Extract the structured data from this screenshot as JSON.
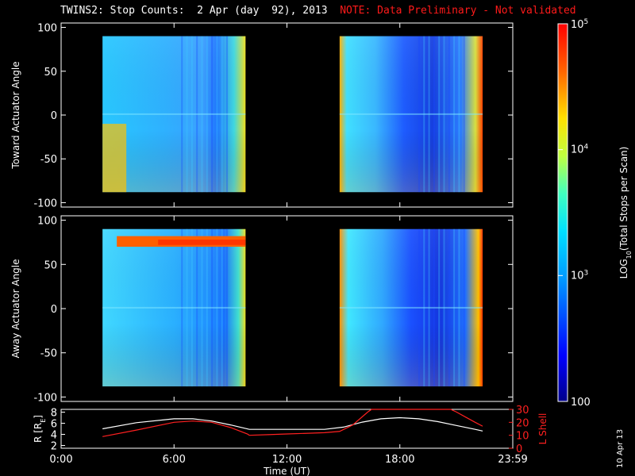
{
  "header": {
    "title": "TWINS2: Stop Counts:  2 Apr (day  92), 2013",
    "note": "NOTE: Data Preliminary - Not validated"
  },
  "side_label": "10 Apr 13",
  "colors": {
    "background": "#000000",
    "axes": "#ffffff",
    "note": "#ff1a1a",
    "r_line": "#ffffff",
    "lshell_line": "#ff2020"
  },
  "chart_data": [
    {
      "type": "heatmap",
      "panel": "toward",
      "ylabel": "Toward Actuator Angle",
      "ylim": [
        -105,
        105
      ],
      "yticks": [
        100,
        50,
        0,
        -50,
        -100
      ],
      "x_hours": [
        0,
        24
      ],
      "data_blocks_hours": [
        [
          2.2,
          9.8
        ],
        [
          14.8,
          22.4
        ]
      ],
      "angle_range": [
        -88,
        90
      ]
    },
    {
      "type": "heatmap",
      "panel": "away",
      "ylabel": "Away Actuator Angle",
      "ylim": [
        -105,
        105
      ],
      "yticks": [
        100,
        50,
        0,
        -50,
        -100
      ],
      "x_hours": [
        0,
        24
      ],
      "data_blocks_hours": [
        [
          2.2,
          9.8
        ],
        [
          14.8,
          22.4
        ]
      ],
      "angle_range": [
        -88,
        90
      ]
    },
    {
      "type": "line",
      "panel": "orbit",
      "xlabel": "Time (UT)",
      "xticks": [
        "0:00",
        "6:00",
        "12:00",
        "18:00",
        "23:59"
      ],
      "xtick_hours": [
        0,
        6,
        12,
        18,
        24
      ],
      "ylabel_left": "R [R",
      "ylabel_left_sub": "E",
      "ylabel_left_close": "]",
      "yticks_left": [
        2,
        4,
        6,
        8
      ],
      "ylim_left": [
        1.5,
        8.5
      ],
      "ylabel_right": "L Shell",
      "yticks_right": [
        0,
        10,
        20,
        30
      ],
      "ylim_right": [
        0,
        30
      ],
      "series": [
        {
          "axis": "left",
          "x": [
            2.2,
            4,
            6,
            7,
            8,
            9,
            10,
            12,
            14,
            15,
            16,
            17,
            18,
            19,
            20,
            21,
            22,
            22.4
          ],
          "values": [
            5.0,
            6.1,
            6.8,
            6.8,
            6.4,
            5.7,
            4.9,
            4.9,
            4.9,
            5.3,
            6.2,
            6.8,
            7.0,
            6.8,
            6.3,
            5.6,
            4.9,
            4.6
          ]
        },
        {
          "axis": "right",
          "x": [
            2.2,
            4,
            6,
            7,
            8,
            9,
            9.9,
            10,
            11,
            12,
            13,
            14,
            14.8,
            15.5,
            16.3,
            16.5,
            20.7,
            21,
            21.5,
            22,
            22.4
          ],
          "values": [
            9,
            14,
            20,
            21,
            20,
            16,
            11,
            10,
            10.5,
            11,
            11.5,
            12,
            13,
            18,
            28,
            30,
            30,
            28,
            24,
            20,
            17
          ]
        }
      ]
    },
    {
      "type": "heatmap",
      "panel": "colorbar",
      "label": "LOG",
      "label_sub": "10",
      "label_rest": "(Total Stops per Scan)",
      "ticks": [
        {
          "value": 100,
          "base": "100",
          "exp": ""
        },
        {
          "value": 1000,
          "base": "10",
          "exp": "3"
        },
        {
          "value": 10000,
          "base": "10",
          "exp": "4"
        },
        {
          "value": 100000,
          "base": "10",
          "exp": "5"
        }
      ],
      "range": [
        100,
        100000
      ],
      "scale": "log"
    }
  ]
}
